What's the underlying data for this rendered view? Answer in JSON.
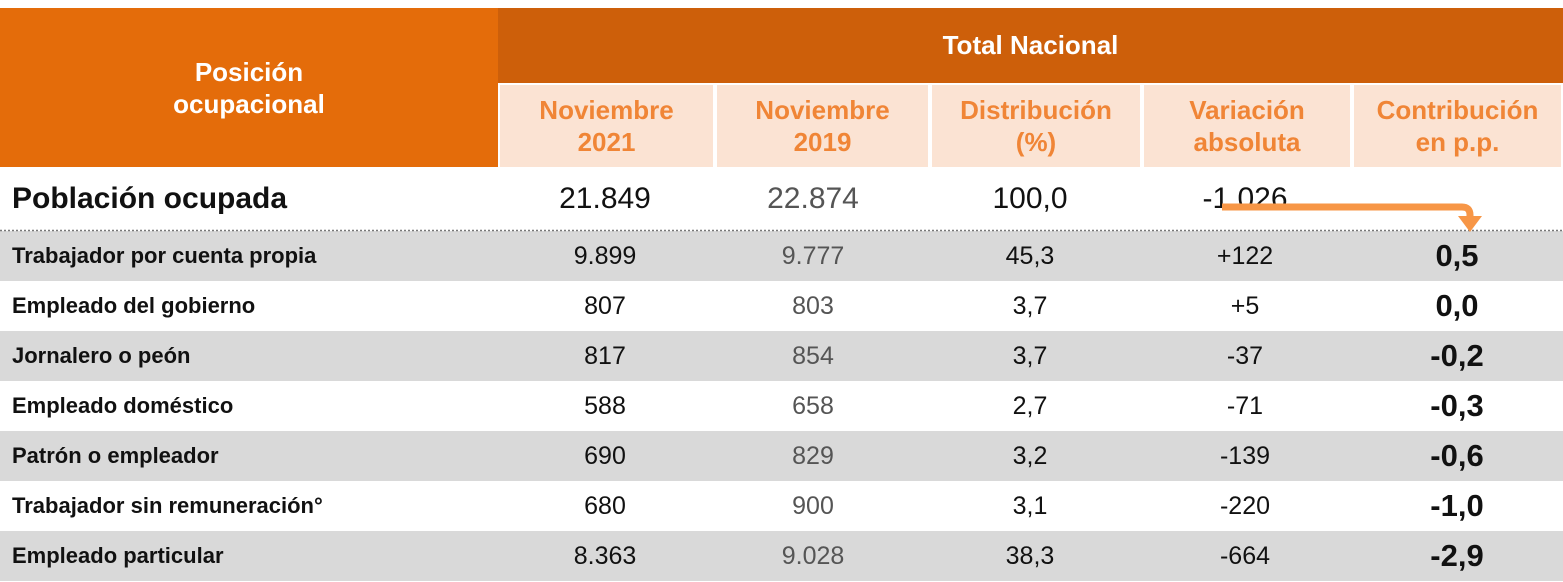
{
  "table": {
    "header": {
      "first": [
        "Posición",
        "ocupacional"
      ],
      "group": "Total Nacional",
      "columns": [
        [
          "Noviembre",
          "2021"
        ],
        [
          "Noviembre",
          "2019"
        ],
        [
          "Distribución",
          "(%)"
        ],
        [
          "Variación",
          "absoluta"
        ],
        [
          "Contribución",
          "en p.p."
        ]
      ]
    },
    "total": {
      "label": "Población ocupada",
      "values": [
        "21.849",
        "22.874",
        "100,0",
        "-1.026"
      ]
    },
    "rows": [
      {
        "label": "Trabajador por cuenta propia",
        "values": [
          "9.899",
          "9.777",
          "45,3",
          "+122",
          "0,5"
        ]
      },
      {
        "label": "Empleado del gobierno",
        "values": [
          "807",
          "803",
          "3,7",
          "+5",
          "0,0"
        ]
      },
      {
        "label": "Jornalero o peón",
        "values": [
          "817",
          "854",
          "3,7",
          "-37",
          "-0,2"
        ]
      },
      {
        "label": "Empleado doméstico",
        "values": [
          "588",
          "658",
          "2,7",
          "-71",
          "-0,3"
        ]
      },
      {
        "label": "Patrón o empleador",
        "values": [
          "690",
          "829",
          "3,2",
          "-139",
          "-0,6"
        ]
      },
      {
        "label": "Trabajador sin remuneración°",
        "values": [
          "680",
          "900",
          "3,1",
          "-220",
          "-1,0"
        ]
      },
      {
        "label": "Empleado particular",
        "values": [
          "8.363",
          "9.028",
          "38,3",
          "-664",
          "-2,9"
        ]
      }
    ]
  }
}
